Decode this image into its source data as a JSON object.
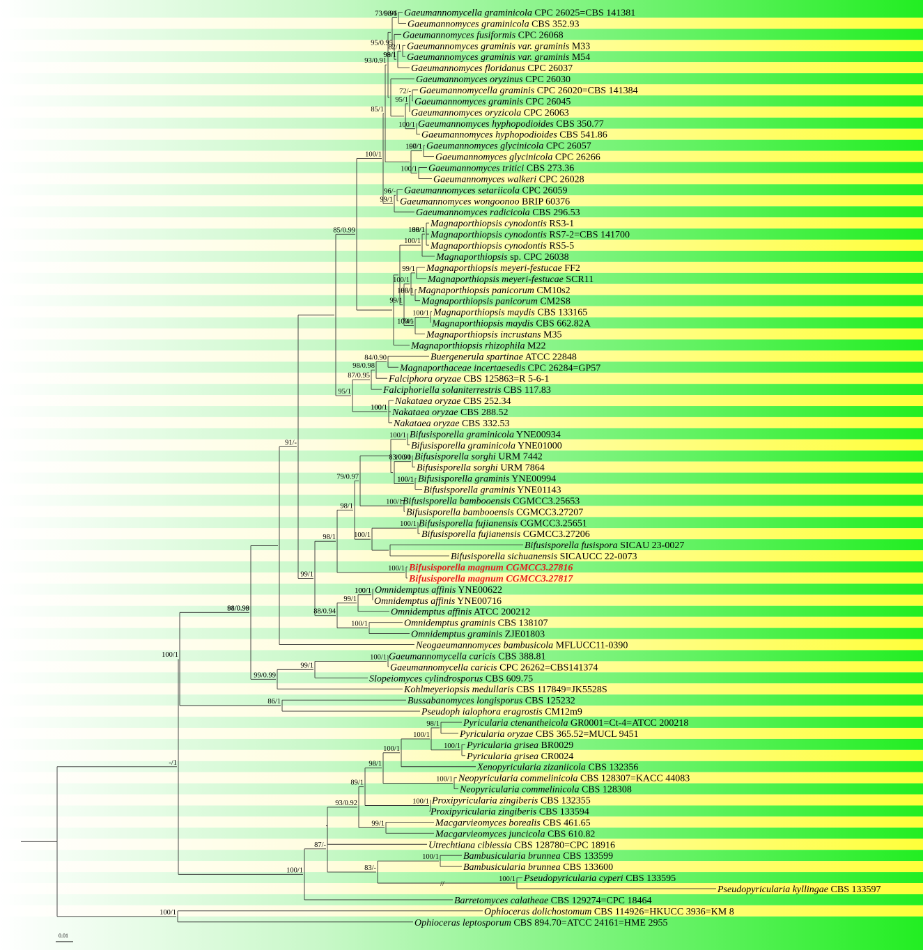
{
  "colors": {
    "band_green": "#33ee33",
    "band_yellow": "#ffff44",
    "branch": "#333333",
    "highlight": "#e0201c"
  },
  "scale_bar": {
    "label": "0.01"
  },
  "taxa": [
    {
      "genus": "Gaeumannomycella graminicola",
      "strain": "CPC 26025=CBS 141381"
    },
    {
      "genus": "Gaeumannomyces graminicola",
      "strain": "CBS 352.93"
    },
    {
      "genus": "Gaeumannomyces fusiformis",
      "strain": "CPC 26068"
    },
    {
      "genus": "Gaeumannomyces graminis var. graminis",
      "strain": "M33"
    },
    {
      "genus": "Gaeumannomyces graminis var. graminis",
      "strain": "M54"
    },
    {
      "genus": "Gaeumannomyces floridanus",
      "strain": "CPC 26037"
    },
    {
      "genus": "Gaeumannomyces oryzinus",
      "strain": "CPC 26030"
    },
    {
      "genus": "Gaeumannomycella graminis",
      "strain": "CPC 26020=CBS 141384"
    },
    {
      "genus": "Gaeumannomyces graminis",
      "strain": "CPC 26045"
    },
    {
      "genus": "Gaeumannomyces oryzicola",
      "strain": "CPC 26063"
    },
    {
      "genus": "Gaeumannomyces hyphopodioides",
      "strain": "CBS 350.77"
    },
    {
      "genus": "Gaeumannomyces hyphopodioides",
      "strain": "CBS 541.86"
    },
    {
      "genus": "Gaeumannomyces glycinicola",
      "strain": "CPC 26057"
    },
    {
      "genus": "Gaeumannomyces glycinicola",
      "strain": "CPC 26266"
    },
    {
      "genus": "Gaeumannomyces tritici",
      "strain": "CBS 273.36"
    },
    {
      "genus": "Gaeumannomyces walkeri",
      "strain": "CPC 26028"
    },
    {
      "genus": "Gaeumannomyces setariicola",
      "strain": "CPC 26059"
    },
    {
      "genus": "Gaeumannomyces wongoonoo",
      "strain": "BRIP 60376"
    },
    {
      "genus": "Gaeumannomyces radicicola",
      "strain": "CBS 296.53"
    },
    {
      "genus": "Magnaporthiopsis cynodontis",
      "strain": "RS3-1"
    },
    {
      "genus": "Magnaporthiopsis cynodontis",
      "strain": "RS7-2=CBS 141700"
    },
    {
      "genus": "Magnaporthiopsis cynodontis",
      "strain": "RS5-5"
    },
    {
      "genus": "Magnaporthiopsis",
      "strain": "sp. CPC 26038"
    },
    {
      "genus": "Magnaporthiopsis meyeri-festucae",
      "strain": "FF2"
    },
    {
      "genus": "Magnaporthiopsis meyeri-festucae",
      "strain": "SCR11"
    },
    {
      "genus": "Magnaporthiopsis panicorum",
      "strain": "CM10s2"
    },
    {
      "genus": "Magnaporthiopsis panicorum",
      "strain": "CM2S8"
    },
    {
      "genus": "Magnaporthiopsis maydis",
      "strain": "CBS 133165"
    },
    {
      "genus": "Magnaporthiopsis maydis",
      "strain": "CBS 662.82A"
    },
    {
      "genus": "Magnaporthiopsis incrustans",
      "strain": "M35"
    },
    {
      "genus": "Magnaporthiopsis rhizophila",
      "strain": "M22"
    },
    {
      "genus": "Buergenerula spartinae",
      "strain": "ATCC 22848"
    },
    {
      "genus": "Magnaporthaceae incertaesedis",
      "strain": "CPC 26284=GP57"
    },
    {
      "genus": "Falciphora oryzae",
      "strain": "CBS 125863=R 5-6-1"
    },
    {
      "genus": "Falciphoriella solaniterrestris",
      "strain": "CBS 117.83"
    },
    {
      "genus": "Nakataea oryzae",
      "strain": "CBS 252.34"
    },
    {
      "genus": "Nakataea oryzae",
      "strain": "CBS 288.52"
    },
    {
      "genus": "Nakataea oryzae",
      "strain": "CBS 332.53"
    },
    {
      "genus": "Bifusisporella graminicola",
      "strain": "YNE00934"
    },
    {
      "genus": "Bifusisporella graminicola",
      "strain": "YNE01000"
    },
    {
      "genus": "Bifusisporella sorghi",
      "strain": "URM 7442"
    },
    {
      "genus": "Bifusisporella sorghi",
      "strain": "URM 7864"
    },
    {
      "genus": "Bifusisporella graminis",
      "strain": "YNE00994"
    },
    {
      "genus": "Bifusisporella graminis",
      "strain": "YNE01143"
    },
    {
      "genus": "Bifusisporella bambooensis",
      "strain": "CGMCC3.25653"
    },
    {
      "genus": "Bifusisporella bambooensis",
      "strain": "CGMCC3.27207"
    },
    {
      "genus": "Bifusisporella fujianensis",
      "strain": "CGMCC3.25651"
    },
    {
      "genus": "Bifusisporella fujianensis",
      "strain": "CGMCC3.27206"
    },
    {
      "genus": "Bifusisporella fusispora",
      "strain": "SICAU 23-0027"
    },
    {
      "genus": "Bifusisporella sichuanensis",
      "strain": "SICAUCC 22-0073"
    },
    {
      "genus": "Bifusisporella magnum",
      "strain": "CGMCC3.27816",
      "highlight": true
    },
    {
      "genus": "Bifusisporella magnum",
      "strain": "CGMCC3.27817",
      "highlight": true
    },
    {
      "genus": "Omnidemptus affinis",
      "strain": "YNE00622"
    },
    {
      "genus": "Omnidemptus affinis",
      "strain": "YNE00716"
    },
    {
      "genus": "Omnidemptus affinis",
      "strain": "ATCC 200212"
    },
    {
      "genus": "Omnidemptus graminis",
      "strain": "CBS 138107"
    },
    {
      "genus": "Omnidemptus graminis",
      "strain": "ZJE01803"
    },
    {
      "genus": "Neogaeumannomyces bambusicola",
      "strain": "MFLUCC11-0390"
    },
    {
      "genus": "Gaeumannomycella caricis",
      "strain": "CBS 388.81"
    },
    {
      "genus": "Gaeumannomycella caricis",
      "strain": "CPC 26262=CBS141374"
    },
    {
      "genus": "Slopeiomyces cylindrosporus",
      "strain": "CBS 609.75"
    },
    {
      "genus": "Kohlmeyeriopsis medullaris",
      "strain": "CBS 117849=JK5528S"
    },
    {
      "genus": "Bussabanomyces longisporus",
      "strain": "CBS 125232"
    },
    {
      "genus": "Pseudoph ialophora eragrostis",
      "strain": "CM12m9"
    },
    {
      "genus": "Pyricularia ctenantheicola",
      "strain": "GR0001=Ct-4=ATCC 200218"
    },
    {
      "genus": "Pyricularia oryzae",
      "strain": "CBS 365.52=MUCL 9451"
    },
    {
      "genus": "Pyricularia grisea",
      "strain": "BR0029"
    },
    {
      "genus": "Pyricularia grisea",
      "strain": "CR0024"
    },
    {
      "genus": "Xenopyricularia zizaniicola",
      "strain": "CBS 132356"
    },
    {
      "genus": "Neopyricularia commelinicola",
      "strain": "CBS 128307=KACC 44083"
    },
    {
      "genus": "Neopyricularia commelinicola",
      "strain": "CBS 128308"
    },
    {
      "genus": "Proxipyricularia zingiberis",
      "strain": "CBS 132355"
    },
    {
      "genus": "Proxipyricularia zingiberis",
      "strain": "CBS 133594"
    },
    {
      "genus": "Macgarvieomyces borealis",
      "strain": "CBS 461.65"
    },
    {
      "genus": "Macgarvieomyces juncicola",
      "strain": "CBS 610.82"
    },
    {
      "genus": "Utrechtiana cibiessia",
      "strain": "CBS 128780=CPC 18916"
    },
    {
      "genus": "Bambusicularia brunnea",
      "strain": "CBS 133599"
    },
    {
      "genus": "Bambusicularia brunnea",
      "strain": "CBS 133600"
    },
    {
      "genus": "Pseudopyricularia cyperi",
      "strain": "CBS 133595"
    },
    {
      "genus": "Pseudopyricularia kyllingae",
      "strain": "CBS 133597"
    },
    {
      "genus": "Barretomyces calatheae",
      "strain": "CBS 129274=CPC 18464"
    },
    {
      "genus": "Ophioceras dolichostomum",
      "strain": "CBS 114926=HKUCC 3936=KM 8"
    },
    {
      "genus": "Ophioceras leptosporum",
      "strain": "CBS 894.70=ATCC 24161=HME 2955"
    }
  ],
  "support_values": [
    "98/1",
    "73/0.96",
    "95/0.95",
    "82/1",
    "98/1",
    "99/1",
    "93/0.91",
    "72/-",
    "95/1",
    "100/1",
    "85/1",
    "97/1",
    "100/1",
    "100/1",
    "100/1",
    "96/-",
    "99/1",
    "88/1",
    "100/1",
    "100/1",
    "100/1",
    "85/0.99",
    "99/1",
    "99/1",
    "100/1",
    "86/1",
    "74/-",
    "100/1",
    "100/1",
    "84/0.90",
    "95/1",
    "98/0.98",
    "87/0.95",
    "100/1",
    "100/1",
    "100/1",
    "83/0.90",
    "100/1",
    "100/1",
    "100/1",
    "79/0.97",
    "100/1",
    "100/1",
    "100/1",
    "98/1",
    "100/1",
    "98/1",
    "100/1",
    "91/-",
    "99/1",
    "81/0.98",
    "100/1",
    "99/1",
    "100/1",
    "88/0.94",
    "98/0.99",
    "100/1",
    "99/1",
    "99/0.99",
    "100/1",
    "86/1",
    "-/1",
    "98/1",
    "100/1",
    "100/1",
    "100/1",
    "98/1",
    "100/1",
    "89/1",
    "100/1",
    "93/0.92",
    "99/1",
    "87/-",
    "100/1",
    "83/-",
    "100/1",
    "100/1",
    "100/1"
  ]
}
